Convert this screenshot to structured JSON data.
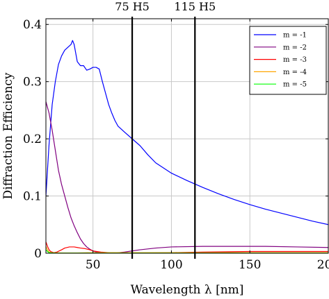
{
  "chart_data": {
    "type": "line",
    "xlabel": "Wavelength λ [nm]",
    "ylabel": "Diffraction Efficiency",
    "xlim": [
      20,
      200
    ],
    "ylim": [
      0,
      0.41
    ],
    "x_ticks": [
      50,
      100,
      150,
      200
    ],
    "y_ticks": [
      0,
      0.1,
      0.2,
      0.3,
      0.4
    ],
    "x_tick_labels": [
      "50",
      "100",
      "150",
      "200"
    ],
    "y_tick_labels": [
      "0",
      "0.1",
      "0.2",
      "0.3",
      "0.4"
    ],
    "grid": true,
    "legend_position": "top-right",
    "vertical_markers": [
      {
        "x": 75,
        "label": "75 H5"
      },
      {
        "x": 115,
        "label": "115 H5"
      }
    ],
    "series": [
      {
        "name": "m = -1",
        "color": "#0000ff",
        "x": [
          20,
          22,
          24,
          26,
          28,
          30,
          32,
          34,
          36,
          37,
          38,
          40,
          42,
          44,
          46,
          48,
          50,
          52,
          54,
          56,
          58,
          60,
          62,
          64,
          66,
          70,
          75,
          80,
          85,
          90,
          100,
          110,
          120,
          130,
          140,
          150,
          160,
          170,
          180,
          190,
          200
        ],
        "y": [
          0.1,
          0.19,
          0.26,
          0.3,
          0.33,
          0.345,
          0.355,
          0.36,
          0.365,
          0.372,
          0.365,
          0.335,
          0.328,
          0.328,
          0.32,
          0.322,
          0.325,
          0.325,
          0.322,
          0.3,
          0.28,
          0.26,
          0.245,
          0.232,
          0.222,
          0.212,
          0.2,
          0.188,
          0.172,
          0.158,
          0.14,
          0.127,
          0.115,
          0.104,
          0.094,
          0.085,
          0.077,
          0.07,
          0.063,
          0.056,
          0.05
        ]
      },
      {
        "name": "m = -2",
        "color": "#800080",
        "x": [
          20,
          22,
          24,
          26,
          28,
          30,
          32,
          34,
          36,
          38,
          40,
          42,
          44,
          46,
          48,
          50,
          52,
          55,
          60,
          65,
          70,
          80,
          90,
          100,
          120,
          140,
          160,
          180,
          200
        ],
        "y": [
          0.265,
          0.245,
          0.215,
          0.18,
          0.145,
          0.12,
          0.1,
          0.08,
          0.062,
          0.048,
          0.036,
          0.025,
          0.017,
          0.011,
          0.007,
          0.004,
          0.002,
          0.001,
          0.0005,
          0.0005,
          0.002,
          0.006,
          0.009,
          0.011,
          0.012,
          0.012,
          0.012,
          0.011,
          0.01
        ]
      },
      {
        "name": "m = -3",
        "color": "#ff0000",
        "x": [
          20,
          21,
          22,
          23,
          25,
          27,
          30,
          32,
          35,
          38,
          40,
          42,
          45,
          48,
          50,
          55,
          60,
          70,
          80,
          100,
          120,
          150,
          200
        ],
        "y": [
          0.02,
          0.012,
          0.006,
          0.003,
          0.001,
          0.002,
          0.006,
          0.009,
          0.011,
          0.011,
          0.01,
          0.009,
          0.008,
          0.006,
          0.004,
          0.002,
          0.001,
          0.0005,
          0.0005,
          0.001,
          0.002,
          0.003,
          0.003
        ]
      },
      {
        "name": "m = -4",
        "color": "#ffa500",
        "x": [
          20,
          21,
          22,
          24,
          26,
          30,
          40,
          50,
          60,
          80,
          100,
          150,
          200
        ],
        "y": [
          0.012,
          0.006,
          0.002,
          0.001,
          0.0008,
          0.0005,
          0.0005,
          0.001,
          0.001,
          0.001,
          0.001,
          0.001,
          0.001
        ]
      },
      {
        "name": "m = -5",
        "color": "#00ff00",
        "x": [
          20,
          21,
          22,
          24,
          26,
          30,
          40,
          60,
          80,
          100,
          150,
          200
        ],
        "y": [
          0.006,
          0.003,
          0.001,
          0.0005,
          0.0003,
          0.0002,
          0.0002,
          0.0002,
          0.0002,
          0.0002,
          0.0002,
          0.0002
        ]
      }
    ]
  }
}
